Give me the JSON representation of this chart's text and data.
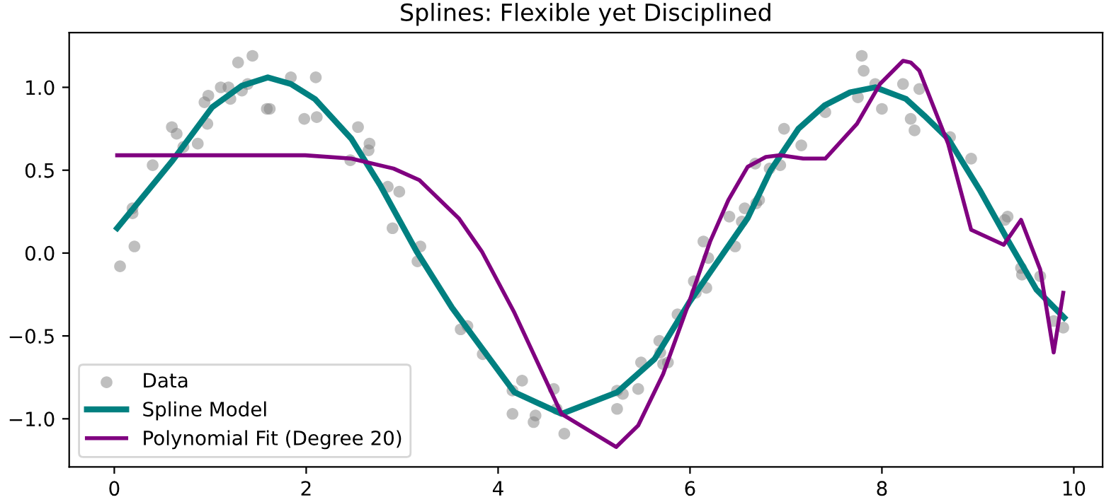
{
  "chart_data": {
    "type": "line",
    "title": "Splines: Flexible yet Disciplined",
    "xlim": [
      -0.47,
      10.3
    ],
    "ylim": [
      -1.29,
      1.33
    ],
    "xticks": [
      0,
      2,
      4,
      6,
      8,
      10
    ],
    "yticks": [
      {
        "value": -1.0,
        "label": "−1.0"
      },
      {
        "value": -0.5,
        "label": "−0.5"
      },
      {
        "value": 0.0,
        "label": "0.0"
      },
      {
        "value": 0.5,
        "label": "0.5"
      },
      {
        "value": 1.0,
        "label": "1.0"
      }
    ],
    "grid": false,
    "legend": "bottom left",
    "series": [
      {
        "name": "Data",
        "type": "scatter",
        "color": "#808080",
        "marker": "circle",
        "x": [
          0.06,
          0.21,
          0.19,
          0.19,
          0.4,
          0.6,
          0.65,
          0.72,
          0.87,
          0.94,
          0.98,
          0.97,
          1.11,
          1.19,
          1.21,
          1.33,
          1.39,
          1.29,
          1.44,
          1.59,
          1.62,
          1.84,
          2.1,
          1.98,
          2.11,
          2.54,
          2.46,
          2.66,
          2.65,
          2.85,
          2.97,
          2.9,
          3.19,
          3.16,
          3.61,
          3.68,
          3.84,
          4.15,
          4.25,
          4.15,
          4.39,
          4.37,
          4.58,
          4.61,
          4.69,
          5.24,
          5.3,
          5.24,
          5.46,
          5.49,
          5.68,
          5.69,
          5.72,
          5.77,
          5.87,
          6.04,
          6.06,
          6.17,
          6.14,
          6.19,
          6.41,
          6.47,
          6.54,
          6.57,
          6.69,
          6.72,
          6.83,
          6.94,
          6.98,
          6.68,
          7.16,
          7.41,
          7.75,
          7.79,
          7.81,
          7.93,
          8.0,
          8.22,
          8.39,
          8.3,
          8.34,
          8.71,
          8.93,
          9.28,
          9.31,
          9.45,
          9.46,
          9.65,
          9.79,
          9.89
        ],
        "values": [
          -0.08,
          0.04,
          0.27,
          0.24,
          0.53,
          0.76,
          0.72,
          0.64,
          0.66,
          0.91,
          0.95,
          0.78,
          1.0,
          1.0,
          0.93,
          0.98,
          1.02,
          1.15,
          1.19,
          0.87,
          0.87,
          1.06,
          1.06,
          0.81,
          0.82,
          0.76,
          0.56,
          0.66,
          0.62,
          0.4,
          0.37,
          0.15,
          0.04,
          -0.05,
          -0.46,
          -0.44,
          -0.61,
          -0.83,
          -0.77,
          -0.97,
          -0.98,
          -1.02,
          -0.82,
          -0.94,
          -1.09,
          -0.83,
          -0.85,
          -0.94,
          -0.82,
          -0.66,
          -0.53,
          -0.6,
          -0.67,
          -0.66,
          -0.37,
          -0.17,
          -0.24,
          -0.21,
          0.07,
          -0.03,
          0.22,
          0.04,
          0.19,
          0.27,
          0.3,
          0.32,
          0.51,
          0.53,
          0.75,
          0.54,
          0.65,
          0.85,
          0.94,
          1.19,
          1.1,
          1.02,
          0.87,
          1.02,
          0.99,
          0.81,
          0.74,
          0.7,
          0.57,
          0.2,
          0.22,
          -0.09,
          -0.13,
          -0.14,
          -0.41,
          -0.45
        ]
      },
      {
        "name": "Spline Model",
        "color": "#008080",
        "line_style": "solid",
        "x": [
          0.03,
          0.61,
          1.02,
          1.33,
          1.6,
          1.84,
          2.09,
          2.47,
          2.77,
          3.15,
          3.52,
          4.17,
          4.66,
          5.24,
          5.63,
          5.99,
          6.6,
          6.84,
          7.13,
          7.4,
          7.67,
          7.93,
          8.25,
          8.44,
          8.69,
          9.02,
          9.32,
          9.61,
          9.9
        ],
        "values": [
          0.15,
          0.56,
          0.88,
          1.01,
          1.06,
          1.02,
          0.93,
          0.69,
          0.41,
          0.01,
          -0.33,
          -0.84,
          -0.97,
          -0.84,
          -0.64,
          -0.3,
          0.21,
          0.5,
          0.75,
          0.89,
          0.97,
          1.0,
          0.93,
          0.83,
          0.69,
          0.38,
          0.07,
          -0.22,
          -0.39
        ]
      },
      {
        "name": "Polynomial Fit (Degree 20)",
        "color": "#800080",
        "line_style": "solid",
        "x": [
          0.03,
          1.99,
          2.47,
          2.91,
          3.18,
          3.59,
          3.83,
          4.17,
          4.66,
          5.23,
          5.46,
          5.72,
          5.97,
          6.21,
          6.4,
          6.6,
          6.79,
          6.94,
          7.18,
          7.41,
          7.74,
          7.98,
          8.22,
          8.3,
          8.39,
          8.69,
          8.93,
          9.27,
          9.45,
          9.65,
          9.79,
          9.89
        ],
        "values": [
          0.59,
          0.59,
          0.57,
          0.51,
          0.44,
          0.21,
          0.01,
          -0.36,
          -0.97,
          -1.17,
          -1.04,
          -0.73,
          -0.33,
          0.07,
          0.32,
          0.52,
          0.58,
          0.59,
          0.57,
          0.57,
          0.78,
          1.02,
          1.16,
          1.15,
          1.1,
          0.66,
          0.14,
          0.05,
          0.2,
          -0.1,
          -0.6,
          -0.24
        ]
      }
    ]
  }
}
